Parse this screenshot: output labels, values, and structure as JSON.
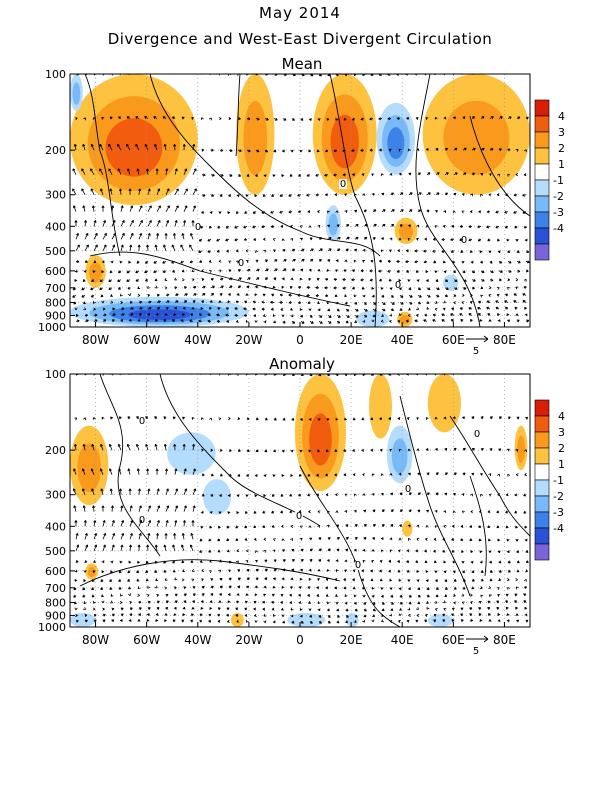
{
  "figure": {
    "title": "May 2014",
    "subtitle": "Divergence and West-East Divergent Circulation"
  },
  "chart_data": [
    {
      "type": "heatmap",
      "panel_title": "Mean",
      "xlabel": "",
      "ylabel": "",
      "x_ticks": [
        "80W",
        "60W",
        "40W",
        "20W",
        "0",
        "20E",
        "40E",
        "60E",
        "80E"
      ],
      "x_tick_values": [
        -80,
        -60,
        -40,
        -20,
        0,
        20,
        40,
        60,
        80
      ],
      "xlim": [
        -90,
        90
      ],
      "y_ticks": [
        "100",
        "200",
        "300",
        "400",
        "500",
        "600",
        "700",
        "800",
        "900",
        "1000"
      ],
      "y_tick_values": [
        100,
        200,
        300,
        400,
        500,
        600,
        700,
        800,
        900,
        1000
      ],
      "ylim": [
        1000,
        100
      ],
      "y_scale": "log-pressure",
      "colorbar": {
        "labels": [
          "4",
          "3",
          "2",
          "1",
          "-1",
          "-2",
          "-3",
          "-4"
        ],
        "levels": [
          4,
          3,
          2,
          1,
          -1,
          -2,
          -3,
          -4
        ],
        "colors": [
          "#d81e05",
          "#f25c0f",
          "#f99a1c",
          "#fdc240",
          "#ffffff",
          "#b4dcfd",
          "#78baf7",
          "#3c82e8",
          "#2a52d6",
          "#7a64d8"
        ]
      },
      "contour_labels": [
        "0",
        "0",
        "0",
        "0",
        "0"
      ],
      "vector_reference": "5",
      "shaded_regions": [
        {
          "sign": "positive",
          "x": [
            -90,
            -40
          ],
          "p": [
            100,
            330
          ],
          "max_level": 3
        },
        {
          "sign": "positive",
          "x": [
            -25,
            -10
          ],
          "p": [
            100,
            300
          ],
          "max_level": 2
        },
        {
          "sign": "positive",
          "x": [
            5,
            30
          ],
          "p": [
            100,
            300
          ],
          "max_level": 3
        },
        {
          "sign": "positive",
          "x": [
            48,
            90
          ],
          "p": [
            100,
            300
          ],
          "max_level": 2
        },
        {
          "sign": "negative",
          "x": [
            -90,
            -85
          ],
          "p": [
            100,
            140
          ],
          "max_level": -2
        },
        {
          "sign": "negative",
          "x": [
            30,
            45
          ],
          "p": [
            130,
            250
          ],
          "max_level": -3
        },
        {
          "sign": "negative",
          "x": [
            10,
            16
          ],
          "p": [
            330,
            460
          ],
          "max_level": -2
        },
        {
          "sign": "positive",
          "x": [
            37,
            46
          ],
          "p": [
            370,
            470
          ],
          "max_level": 2
        },
        {
          "sign": "positive",
          "x": [
            -84,
            -76
          ],
          "p": [
            520,
            700
          ],
          "max_level": 2
        },
        {
          "sign": "negative",
          "x": [
            -90,
            -20
          ],
          "p": [
            760,
            1000
          ],
          "max_level": -4
        },
        {
          "sign": "negative",
          "x": [
            22,
            35
          ],
          "p": [
            860,
            1000
          ],
          "max_level": -1
        },
        {
          "sign": "positive",
          "x": [
            38,
            44
          ],
          "p": [
            870,
            1000
          ],
          "max_level": 2
        },
        {
          "sign": "negative",
          "x": [
            56,
            62
          ],
          "p": [
            620,
            720
          ],
          "max_level": -1
        }
      ]
    },
    {
      "type": "heatmap",
      "panel_title": "Anomaly",
      "xlabel": "",
      "ylabel": "",
      "x_ticks": [
        "80W",
        "60W",
        "40W",
        "20W",
        "0",
        "20E",
        "40E",
        "60E",
        "80E"
      ],
      "x_tick_values": [
        -80,
        -60,
        -40,
        -20,
        0,
        20,
        40,
        60,
        80
      ],
      "xlim": [
        -90,
        90
      ],
      "y_ticks": [
        "100",
        "200",
        "300",
        "400",
        "500",
        "600",
        "700",
        "800",
        "900",
        "1000"
      ],
      "y_tick_values": [
        100,
        200,
        300,
        400,
        500,
        600,
        700,
        800,
        900,
        1000
      ],
      "ylim": [
        1000,
        100
      ],
      "y_scale": "log-pressure",
      "colorbar": {
        "labels": [
          "4",
          "3",
          "2",
          "1",
          "-1",
          "-2",
          "-3",
          "-4"
        ],
        "levels": [
          4,
          3,
          2,
          1,
          -1,
          -2,
          -3,
          -4
        ],
        "colors": [
          "#d81e05",
          "#f25c0f",
          "#f99a1c",
          "#fdc240",
          "#ffffff",
          "#b4dcfd",
          "#78baf7",
          "#3c82e8",
          "#2a52d6",
          "#7a64d8"
        ]
      },
      "contour_labels": [
        "0",
        "0",
        "0",
        "0",
        "0",
        "0"
      ],
      "vector_reference": "5",
      "shaded_regions": [
        {
          "sign": "positive",
          "x": [
            -90,
            -75
          ],
          "p": [
            160,
            330
          ],
          "max_level": 2
        },
        {
          "sign": "positive",
          "x": [
            -2,
            18
          ],
          "p": [
            100,
            290
          ],
          "max_level": 3
        },
        {
          "sign": "positive",
          "x": [
            27,
            36
          ],
          "p": [
            100,
            180
          ],
          "max_level": 1
        },
        {
          "sign": "positive",
          "x": [
            50,
            63
          ],
          "p": [
            100,
            170
          ],
          "max_level": 1
        },
        {
          "sign": "positive",
          "x": [
            84,
            89
          ],
          "p": [
            160,
            240
          ],
          "max_level": 2
        },
        {
          "sign": "negative",
          "x": [
            -52,
            -33
          ],
          "p": [
            170,
            250
          ],
          "max_level": -1
        },
        {
          "sign": "negative",
          "x": [
            -38,
            -27
          ],
          "p": [
            260,
            360
          ],
          "max_level": -1
        },
        {
          "sign": "negative",
          "x": [
            34,
            44
          ],
          "p": [
            160,
            270
          ],
          "max_level": -2
        },
        {
          "sign": "positive",
          "x": [
            40,
            44
          ],
          "p": [
            380,
            440
          ],
          "max_level": 1
        },
        {
          "sign": "positive",
          "x": [
            -84,
            -79
          ],
          "p": [
            560,
            650
          ],
          "max_level": 2
        },
        {
          "sign": "negative",
          "x": [
            -90,
            -80
          ],
          "p": [
            880,
            1000
          ],
          "max_level": -1
        },
        {
          "sign": "negative",
          "x": [
            -5,
            10
          ],
          "p": [
            880,
            1000
          ],
          "max_level": -1
        },
        {
          "sign": "positive",
          "x": [
            -27,
            -22
          ],
          "p": [
            880,
            1000
          ],
          "max_level": 1
        },
        {
          "sign": "negative",
          "x": [
            18,
            23
          ],
          "p": [
            880,
            1000
          ],
          "max_level": -1
        },
        {
          "sign": "negative",
          "x": [
            50,
            60
          ],
          "p": [
            890,
            1000
          ],
          "max_level": -1
        }
      ]
    }
  ]
}
